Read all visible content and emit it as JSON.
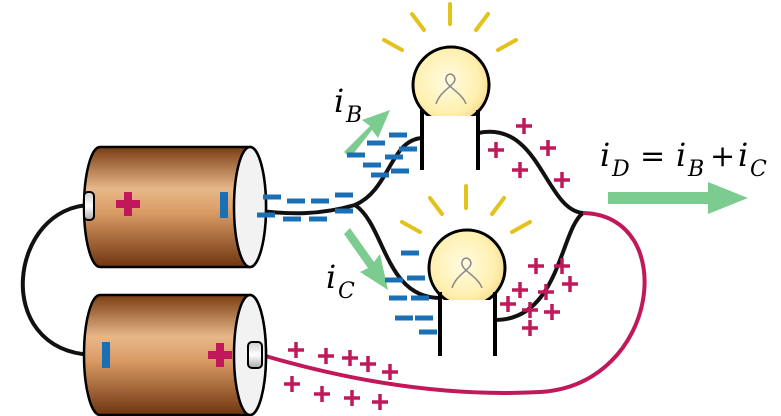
{
  "labels": {
    "iB": {
      "main": "i",
      "sub": "B"
    },
    "iC": {
      "main": "i",
      "sub": "C"
    },
    "equation": {
      "lhs_main": "i",
      "lhs_sub": "D",
      "eq": "=",
      "t1_main": "i",
      "t1_sub": "B",
      "plus": "+",
      "t2_main": "i",
      "t2_sub": "C"
    }
  },
  "colors": {
    "battery_dark": "#8a4a1a",
    "battery_light": "#e7b98c",
    "negative_charge": "#1b6fb5",
    "positive_charge": "#c0185a",
    "positive_wire": "#c0185a",
    "negative_wire": "#111111",
    "arrow": "#7ccb8f",
    "bulb_glass": "#fff2b5",
    "rays": "#e3c21b"
  },
  "symbols": {
    "minus": "−",
    "plus": "+"
  }
}
